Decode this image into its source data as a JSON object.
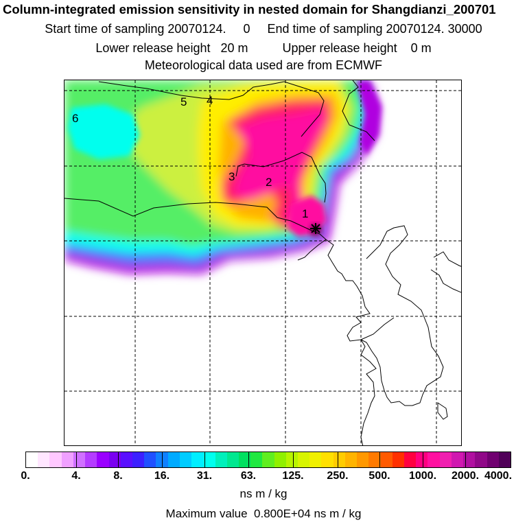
{
  "header": {
    "title": "Column-integrated emission sensitivity in nested domain for Shangdianzi_200701",
    "sampling": "Start time of sampling 20070124.     0     End time of sampling 20070124. 30000",
    "release": "Lower release height   20 m          Upper release height    0 m",
    "met": "Meteorological data used are from ECMWF"
  },
  "map": {
    "release_labels": [
      "1",
      "2",
      "3",
      "4",
      "5",
      "6"
    ],
    "colors": {
      "purple": "#b000e0",
      "blue": "#3f7fff",
      "cyan": "#00ffee",
      "green": "#55ee66",
      "yellowgreen": "#ccf040",
      "yellow": "#ffee00",
      "orange": "#ffb000",
      "red": "#ff2060",
      "magenta": "#ff10a0",
      "darkmagenta": "#8a0066"
    }
  },
  "legend": {
    "tick_labels": [
      "0.",
      "4.",
      "8.",
      "16.",
      "31.",
      "63.",
      "125.",
      "250.",
      "500.",
      "1000.",
      "2000.",
      "4000."
    ],
    "units": "ns m / kg",
    "colors": [
      "#ffffff",
      "#ffe6ff",
      "#ffc8ff",
      "#f0a0ff",
      "#d070ff",
      "#b43cff",
      "#9a00ff",
      "#7a00f0",
      "#5a10ff",
      "#3c20ff",
      "#2050ff",
      "#1080ff",
      "#00aaff",
      "#00ccff",
      "#00eeff",
      "#00ffee",
      "#00f0bb",
      "#00e890",
      "#00e060",
      "#20e840",
      "#60ee20",
      "#90f000",
      "#b8f400",
      "#d8f400",
      "#f0f000",
      "#ffe000",
      "#ffcc00",
      "#ffb400",
      "#ff9800",
      "#ff7a00",
      "#ff5a00",
      "#ff3000",
      "#ff0040",
      "#ff0080",
      "#ff10a0",
      "#f020b0",
      "#d018b0",
      "#b010a0",
      "#900888",
      "#700070",
      "#500058"
    ]
  },
  "footer": {
    "max_value": "Maximum value  0.800E+04 ns m / kg"
  }
}
